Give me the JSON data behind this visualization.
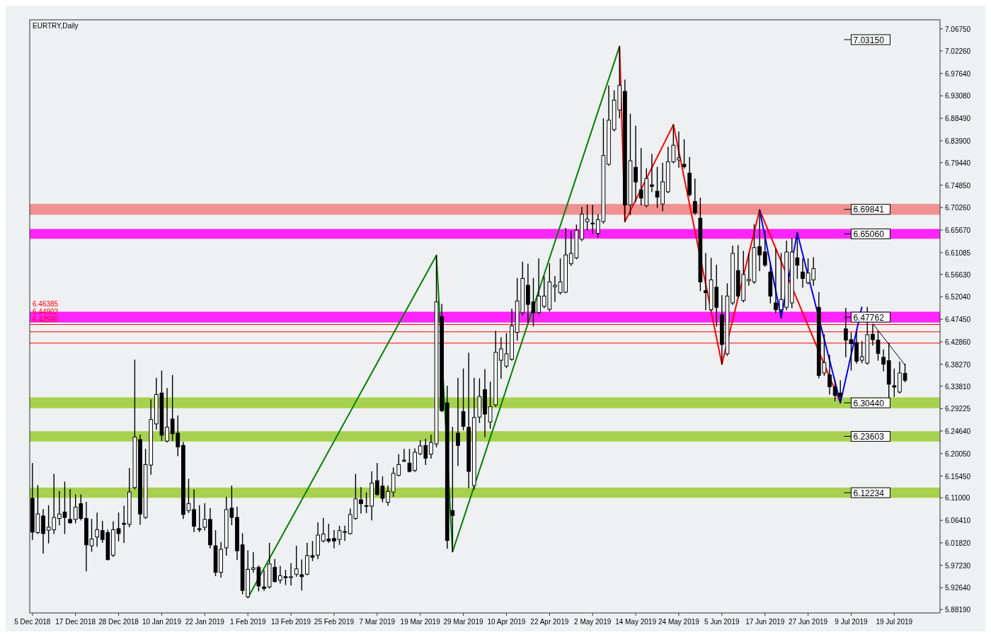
{
  "chart_data": {
    "type": "candlestick",
    "title": "EURTRY,Daily",
    "categories": [
      "5 Dec 2018",
      null,
      null,
      null,
      null,
      null,
      null,
      null,
      "17 Dec 2018",
      null,
      null,
      null,
      null,
      null,
      null,
      null,
      "28 Dec 2018",
      null,
      null,
      null,
      null,
      null,
      null,
      null,
      "10 Jan 2019",
      null,
      null,
      null,
      null,
      null,
      null,
      null,
      "22 Jan 2019",
      null,
      null,
      null,
      null,
      null,
      null,
      null,
      "1 Feb 2019",
      null,
      null,
      null,
      null,
      null,
      null,
      null,
      "13 Feb 2019",
      null,
      null,
      null,
      null,
      null,
      null,
      null,
      "25 Feb 2019",
      null,
      null,
      null,
      null,
      null,
      null,
      null,
      "7 Mar 2019",
      null,
      null,
      null,
      null,
      null,
      null,
      null,
      "19 Mar 2019",
      null,
      null,
      null,
      null,
      null,
      null,
      null,
      "29 Mar 2019",
      null,
      null,
      null,
      null,
      null,
      null,
      null,
      "10 Apr 2019",
      null,
      null,
      null,
      null,
      null,
      null,
      null,
      "22 Apr 2019",
      null,
      null,
      null,
      null,
      null,
      null,
      null,
      "2 May 2019",
      null,
      null,
      null,
      null,
      null,
      null,
      null,
      "14 May 2019",
      null,
      null,
      null,
      null,
      null,
      null,
      null,
      "24 May 2019",
      null,
      null,
      null,
      null,
      null,
      null,
      null,
      "5 Jun 2019",
      null,
      null,
      null,
      null,
      null,
      null,
      null,
      "17 Jun 2019",
      null,
      null,
      null,
      null,
      null,
      null,
      null,
      "27 Jun 2019",
      null,
      null,
      null,
      null,
      null,
      null,
      null,
      "9 Jul 2019",
      null,
      null,
      null,
      null,
      null,
      null,
      null,
      "19 Jul 2019",
      null,
      null
    ],
    "ohlc": [
      [
        6.109,
        6.18,
        6.025,
        6.04
      ],
      [
        6.039,
        6.135,
        6.037,
        6.077
      ],
      [
        6.073,
        6.086,
        5.997,
        6.037
      ],
      [
        6.044,
        6.094,
        6.018,
        6.05
      ],
      [
        6.045,
        6.158,
        6.037,
        6.07
      ],
      [
        6.068,
        6.123,
        6.055,
        6.077
      ],
      [
        6.081,
        6.142,
        6.037,
        6.07
      ],
      [
        6.066,
        6.127,
        6.058,
        6.059
      ],
      [
        6.066,
        6.116,
        6.059,
        6.091
      ],
      [
        6.098,
        6.116,
        6.065,
        6.068
      ],
      [
        6.068,
        6.101,
        5.961,
        6.014
      ],
      [
        6.012,
        6.066,
        6.001,
        6.026
      ],
      [
        6.03,
        6.079,
        6.011,
        6.045
      ],
      [
        6.043,
        6.062,
        6.019,
        6.025
      ],
      [
        6.039,
        6.044,
        5.983,
        5.984
      ],
      [
        5.993,
        6.061,
        5.99,
        6.045
      ],
      [
        6.047,
        6.079,
        6.022,
        6.037
      ],
      [
        6.058,
        6.093,
        6.019,
        6.056
      ],
      [
        6.056,
        6.17,
        6.051,
        6.122
      ],
      [
        6.131,
        6.391,
        6.128,
        6.234
      ],
      [
        6.229,
        6.238,
        6.056,
        6.077
      ],
      [
        6.07,
        6.209,
        6.068,
        6.178
      ],
      [
        6.177,
        6.31,
        6.158,
        6.27
      ],
      [
        6.261,
        6.354,
        6.25,
        6.321
      ],
      [
        6.324,
        6.369,
        6.227,
        6.238
      ],
      [
        6.226,
        6.333,
        6.224,
        6.254
      ],
      [
        6.271,
        6.36,
        6.227,
        6.241
      ],
      [
        6.242,
        6.277,
        6.196,
        6.214
      ],
      [
        6.217,
        6.223,
        6.068,
        6.076
      ],
      [
        6.084,
        6.148,
        6.08,
        6.098
      ],
      [
        6.086,
        6.126,
        6.041,
        6.052
      ],
      [
        6.047,
        6.094,
        6.041,
        6.045
      ],
      [
        6.05,
        6.098,
        6.044,
        6.066
      ],
      [
        6.066,
        6.088,
        6.008,
        6.014
      ],
      [
        6.012,
        6.043,
        5.951,
        5.958
      ],
      [
        5.958,
        6.019,
        5.948,
        6.005
      ],
      [
        6.008,
        6.111,
        5.993,
        6.086
      ],
      [
        6.089,
        6.134,
        6.055,
        6.07
      ],
      [
        6.07,
        6.091,
        5.984,
        6.002
      ],
      [
        6.014,
        6.037,
        5.914,
        5.921
      ],
      [
        5.908,
        6.002,
        5.906,
        5.964
      ],
      [
        5.964,
        5.998,
        5.958,
        5.967
      ],
      [
        5.968,
        5.971,
        5.92,
        5.93
      ],
      [
        5.928,
        5.961,
        5.921,
        5.925
      ],
      [
        5.928,
        6.017,
        5.926,
        5.975
      ],
      [
        5.968,
        5.984,
        5.938,
        5.939
      ],
      [
        5.942,
        5.97,
        5.936,
        5.951
      ],
      [
        5.949,
        5.962,
        5.933,
        5.947
      ],
      [
        5.947,
        5.976,
        5.932,
        5.949
      ],
      [
        5.954,
        6.011,
        5.95,
        5.965
      ],
      [
        5.953,
        5.983,
        5.922,
        5.949
      ],
      [
        5.954,
        6.017,
        5.953,
        5.992
      ],
      [
        5.992,
        6.021,
        5.982,
        5.989
      ],
      [
        5.993,
        6.059,
        5.986,
        6.034
      ],
      [
        6.022,
        6.068,
        6.02,
        6.036
      ],
      [
        6.026,
        6.056,
        6.019,
        6.022
      ],
      [
        6.027,
        6.043,
        6.008,
        6.022
      ],
      [
        6.025,
        6.052,
        6.015,
        6.043
      ],
      [
        6.04,
        6.052,
        6.023,
        6.041
      ],
      [
        6.037,
        6.087,
        6.036,
        6.076
      ],
      [
        6.068,
        6.158,
        6.066,
        6.108
      ],
      [
        6.106,
        6.131,
        6.079,
        6.098
      ],
      [
        6.094,
        6.12,
        6.08,
        6.093
      ],
      [
        6.093,
        6.163,
        6.065,
        6.14
      ],
      [
        6.145,
        6.18,
        6.115,
        6.117
      ],
      [
        6.134,
        6.153,
        6.102,
        6.109
      ],
      [
        6.101,
        6.134,
        6.095,
        6.123
      ],
      [
        6.122,
        6.171,
        6.113,
        6.16
      ],
      [
        6.156,
        6.198,
        6.155,
        6.178
      ],
      [
        6.185,
        6.209,
        6.184,
        6.187
      ],
      [
        6.181,
        6.209,
        6.163,
        6.164
      ],
      [
        6.166,
        6.21,
        6.164,
        6.203
      ],
      [
        6.2,
        6.227,
        6.198,
        6.216
      ],
      [
        6.217,
        6.23,
        6.178,
        6.191
      ],
      [
        6.199,
        6.238,
        6.191,
        6.223
      ],
      [
        6.22,
        6.605,
        6.214,
        6.51
      ],
      [
        6.48,
        6.505,
        6.286,
        6.288
      ],
      [
        6.304,
        6.338,
        6.007,
        6.023
      ],
      [
        6.084,
        6.254,
        6.0,
        6.074
      ],
      [
        6.242,
        6.354,
        6.176,
        6.217
      ],
      [
        6.286,
        6.373,
        6.249,
        6.256
      ],
      [
        6.254,
        6.405,
        6.131,
        6.164
      ],
      [
        6.135,
        6.354,
        6.128,
        6.274
      ],
      [
        6.275,
        6.353,
        6.264,
        6.317
      ],
      [
        6.331,
        6.372,
        6.235,
        6.281
      ],
      [
        6.265,
        6.346,
        6.252,
        6.296
      ],
      [
        6.3,
        6.45,
        6.297,
        6.407
      ],
      [
        6.391,
        6.437,
        6.354,
        6.414
      ],
      [
        6.379,
        6.445,
        6.376,
        6.404
      ],
      [
        6.393,
        6.495,
        6.391,
        6.461
      ],
      [
        6.448,
        6.558,
        6.432,
        6.512
      ],
      [
        6.488,
        6.591,
        6.483,
        6.558
      ],
      [
        6.544,
        6.587,
        6.468,
        6.505
      ],
      [
        6.51,
        6.558,
        6.461,
        6.488
      ],
      [
        6.488,
        6.598,
        6.486,
        6.522
      ],
      [
        6.501,
        6.562,
        6.498,
        6.522
      ],
      [
        6.495,
        6.588,
        6.492,
        6.551
      ],
      [
        6.541,
        6.562,
        6.511,
        6.544
      ],
      [
        6.529,
        6.598,
        6.526,
        6.551
      ],
      [
        6.53,
        6.66,
        6.529,
        6.606
      ],
      [
        6.588,
        6.654,
        6.585,
        6.609
      ],
      [
        6.6,
        6.667,
        6.598,
        6.656
      ],
      [
        6.638,
        6.703,
        6.635,
        6.689
      ],
      [
        6.674,
        6.708,
        6.657,
        6.679
      ],
      [
        6.671,
        6.707,
        6.65,
        6.67
      ],
      [
        6.65,
        6.688,
        6.642,
        6.678
      ],
      [
        6.674,
        6.884,
        6.671,
        6.809
      ],
      [
        6.791,
        6.951,
        6.789,
        6.881
      ],
      [
        6.862,
        6.941,
        6.859,
        6.922
      ],
      [
        6.902,
        7.032,
        6.886,
        6.952
      ],
      [
        6.94,
        6.963,
        6.674,
        6.708
      ],
      [
        6.708,
        6.893,
        6.688,
        6.798
      ],
      [
        6.785,
        6.869,
        6.715,
        6.755
      ],
      [
        6.739,
        6.823,
        6.708,
        6.722
      ],
      [
        6.707,
        6.782,
        6.704,
        6.762
      ],
      [
        6.749,
        6.811,
        6.735,
        6.746
      ],
      [
        6.736,
        6.785,
        6.703,
        6.724
      ],
      [
        6.71,
        6.793,
        6.696,
        6.755
      ],
      [
        6.735,
        6.826,
        6.733,
        6.796
      ],
      [
        6.796,
        6.872,
        6.794,
        6.83
      ],
      [
        6.8,
        6.857,
        6.785,
        6.804
      ],
      [
        6.791,
        6.841,
        6.783,
        6.786
      ],
      [
        6.773,
        6.805,
        6.726,
        6.729
      ],
      [
        6.715,
        6.761,
        6.689,
        6.692
      ],
      [
        6.681,
        6.722,
        6.533,
        6.551
      ],
      [
        6.533,
        6.609,
        6.494,
        6.529
      ],
      [
        6.494,
        6.599,
        6.493,
        6.555
      ],
      [
        6.54,
        6.585,
        6.461,
        6.499
      ],
      [
        6.484,
        6.523,
        6.383,
        6.423
      ],
      [
        6.404,
        6.547,
        6.401,
        6.522
      ],
      [
        6.508,
        6.624,
        6.505,
        6.609
      ],
      [
        6.574,
        6.625,
        6.519,
        6.522
      ],
      [
        6.513,
        6.613,
        6.51,
        6.566
      ],
      [
        6.553,
        6.609,
        6.544,
        6.556
      ],
      [
        6.551,
        6.668,
        6.548,
        6.621
      ],
      [
        6.623,
        6.698,
        6.574,
        6.606
      ],
      [
        6.612,
        6.654,
        6.583,
        6.585
      ],
      [
        6.571,
        6.588,
        6.508,
        6.522
      ],
      [
        6.508,
        6.618,
        6.488,
        6.494
      ],
      [
        6.494,
        6.609,
        6.478,
        6.515
      ],
      [
        6.499,
        6.634,
        6.494,
        6.612
      ],
      [
        6.508,
        6.639,
        6.498,
        6.612
      ],
      [
        6.6,
        6.651,
        6.558,
        6.585
      ],
      [
        6.571,
        6.598,
        6.54,
        6.558
      ],
      [
        6.549,
        6.598,
        6.547,
        6.569
      ],
      [
        6.555,
        6.6,
        6.544,
        6.578
      ],
      [
        6.499,
        6.529,
        6.355,
        6.36
      ],
      [
        6.365,
        6.443,
        6.36,
        6.386
      ],
      [
        6.361,
        6.401,
        6.322,
        6.337
      ],
      [
        6.336,
        6.349,
        6.308,
        6.319
      ],
      [
        6.324,
        6.349,
        6.304,
        6.317
      ],
      [
        6.455,
        6.497,
        6.398,
        6.432
      ],
      [
        6.433,
        6.447,
        6.371,
        6.425
      ],
      [
        6.427,
        6.45,
        6.385,
        6.389
      ],
      [
        6.391,
        6.429,
        6.386,
        6.398
      ],
      [
        6.385,
        6.499,
        6.383,
        6.443
      ],
      [
        6.444,
        6.463,
        6.422,
        6.433
      ],
      [
        6.432,
        6.45,
        6.391,
        6.405
      ],
      [
        6.397,
        6.412,
        6.369,
        6.383
      ],
      [
        6.39,
        6.426,
        6.308,
        6.342
      ],
      [
        6.339,
        6.373,
        6.317,
        6.336
      ],
      [
        6.326,
        6.387,
        6.324,
        6.365
      ],
      [
        6.364,
        6.383,
        6.347,
        6.35
      ]
    ],
    "series": [
      {
        "type": "line",
        "color": "#008000",
        "values": [
          null,
          null,
          null,
          null,
          null,
          null,
          null,
          null,
          null,
          null,
          null,
          null,
          null,
          null,
          null,
          null,
          null,
          null,
          null,
          null,
          null,
          null,
          null,
          null,
          null,
          null,
          null,
          null,
          null,
          null,
          null,
          null,
          null,
          null,
          null,
          null,
          null,
          null,
          null,
          null,
          5.906,
          null,
          null,
          null,
          null,
          null,
          null,
          null,
          null,
          null,
          null,
          null,
          null,
          null,
          null,
          null,
          null,
          null,
          null,
          null,
          null,
          null,
          null,
          null,
          null,
          null,
          null,
          null,
          null,
          null,
          null,
          null,
          null,
          null,
          null,
          6.605,
          null,
          null,
          6.0,
          null,
          null,
          null,
          null,
          null,
          null,
          null,
          null,
          null,
          null,
          null,
          null,
          null,
          null,
          null,
          null,
          null,
          null,
          null,
          null,
          null,
          null,
          null,
          null,
          null,
          null,
          null,
          null,
          null,
          null,
          7.032,
          null,
          null,
          null,
          null,
          null,
          null,
          null,
          null,
          null,
          null,
          null,
          null,
          null,
          null,
          null,
          null,
          null,
          null,
          null,
          null,
          null,
          null,
          null,
          null,
          null,
          null,
          null,
          null,
          null,
          null,
          null,
          null,
          null,
          null,
          null,
          null,
          null,
          null,
          null,
          null,
          null,
          null,
          null,
          null,
          null,
          null,
          null,
          null,
          null,
          null,
          null,
          null,
          null
        ]
      },
      {
        "type": "line",
        "color": "#ff0000",
        "values": [
          null,
          null,
          null,
          null,
          null,
          null,
          null,
          null,
          null,
          null,
          null,
          null,
          null,
          null,
          null,
          null,
          null,
          null,
          null,
          null,
          null,
          null,
          null,
          null,
          null,
          null,
          null,
          null,
          null,
          null,
          null,
          null,
          null,
          null,
          null,
          null,
          null,
          null,
          null,
          null,
          null,
          null,
          null,
          null,
          null,
          null,
          null,
          null,
          null,
          null,
          null,
          null,
          null,
          null,
          null,
          null,
          null,
          null,
          null,
          null,
          null,
          null,
          null,
          null,
          null,
          null,
          null,
          null,
          null,
          null,
          null,
          null,
          null,
          null,
          null,
          null,
          null,
          null,
          null,
          null,
          null,
          null,
          null,
          null,
          null,
          null,
          null,
          null,
          null,
          null,
          null,
          null,
          null,
          null,
          null,
          null,
          null,
          null,
          null,
          null,
          null,
          null,
          null,
          null,
          null,
          null,
          null,
          null,
          null,
          7.032,
          6.674,
          null,
          null,
          null,
          null,
          null,
          null,
          null,
          null,
          6.872,
          null,
          null,
          null,
          null,
          null,
          null,
          null,
          null,
          6.383,
          null,
          null,
          null,
          null,
          null,
          null,
          6.698,
          null,
          null,
          null,
          null,
          null,
          null,
          null,
          null,
          null,
          null,
          null,
          null,
          null,
          null,
          6.304,
          null,
          null,
          null,
          null,
          null,
          null,
          null,
          null,
          null,
          null,
          null,
          null
        ]
      },
      {
        "type": "line",
        "color": "#0000ff",
        "values": [
          null,
          null,
          null,
          null,
          null,
          null,
          null,
          null,
          null,
          null,
          null,
          null,
          null,
          null,
          null,
          null,
          null,
          null,
          null,
          null,
          null,
          null,
          null,
          null,
          null,
          null,
          null,
          null,
          null,
          null,
          null,
          null,
          null,
          null,
          null,
          null,
          null,
          null,
          null,
          null,
          null,
          null,
          null,
          null,
          null,
          null,
          null,
          null,
          null,
          null,
          null,
          null,
          null,
          null,
          null,
          null,
          null,
          null,
          null,
          null,
          null,
          null,
          null,
          null,
          null,
          null,
          null,
          null,
          null,
          null,
          null,
          null,
          null,
          null,
          null,
          null,
          null,
          null,
          null,
          null,
          null,
          null,
          null,
          null,
          null,
          null,
          null,
          null,
          null,
          null,
          null,
          null,
          null,
          null,
          null,
          null,
          null,
          null,
          null,
          null,
          null,
          null,
          null,
          null,
          null,
          null,
          null,
          null,
          null,
          null,
          null,
          null,
          null,
          null,
          null,
          null,
          null,
          null,
          null,
          null,
          null,
          null,
          null,
          null,
          null,
          null,
          null,
          null,
          null,
          null,
          null,
          null,
          null,
          null,
          null,
          6.698,
          null,
          null,
          null,
          6.478,
          null,
          null,
          6.651,
          null,
          null,
          null,
          null,
          null,
          null,
          null,
          6.304,
          null,
          null,
          null,
          6.5,
          null,
          null,
          null,
          null,
          null,
          null,
          null,
          null
        ]
      },
      {
        "type": "line",
        "color": "#000000",
        "values": [
          null,
          null,
          null,
          null,
          null,
          null,
          null,
          null,
          null,
          null,
          null,
          null,
          null,
          null,
          null,
          null,
          null,
          null,
          null,
          null,
          null,
          null,
          null,
          null,
          null,
          null,
          null,
          null,
          null,
          null,
          null,
          null,
          null,
          null,
          null,
          null,
          null,
          null,
          null,
          null,
          null,
          null,
          null,
          null,
          null,
          null,
          null,
          null,
          null,
          null,
          null,
          null,
          null,
          null,
          null,
          null,
          null,
          null,
          null,
          null,
          null,
          null,
          null,
          null,
          null,
          null,
          null,
          null,
          null,
          null,
          null,
          null,
          null,
          null,
          null,
          null,
          null,
          null,
          null,
          null,
          null,
          null,
          null,
          null,
          null,
          null,
          null,
          null,
          null,
          null,
          null,
          null,
          null,
          null,
          null,
          null,
          null,
          null,
          null,
          null,
          null,
          null,
          null,
          null,
          null,
          null,
          null,
          null,
          null,
          null,
          null,
          null,
          null,
          null,
          null,
          null,
          null,
          null,
          null,
          null,
          null,
          null,
          null,
          null,
          null,
          null,
          null,
          null,
          null,
          null,
          null,
          null,
          null,
          null,
          null,
          null,
          null,
          null,
          null,
          null,
          null,
          null,
          null,
          null,
          null,
          null,
          null,
          null,
          null,
          null,
          null,
          null,
          null,
          null,
          null,
          null,
          6.466,
          null,
          null,
          null,
          null,
          null,
          6.381
        ]
      }
    ],
    "bands": [
      {
        "axis": "y",
        "from": 6.293,
        "to": 6.315,
        "color": "#9acd32",
        "label": "6.30440"
      },
      {
        "axis": "y",
        "from": 6.225,
        "to": 6.246,
        "color": "#9acd32",
        "label": "6.23603"
      },
      {
        "axis": "y",
        "from": 6.11,
        "to": 6.131,
        "color": "#9acd32",
        "label": "6.12234"
      },
      {
        "axis": "y",
        "from": 6.468,
        "to": 6.49,
        "color": "#ff00ff",
        "label": "6.47762"
      },
      {
        "axis": "y",
        "from": 6.639,
        "to": 6.659,
        "color": "#ff00ff",
        "label": "6.65060"
      },
      {
        "axis": "y",
        "from": 6.688,
        "to": 6.71,
        "color": "#f08080",
        "label": "6.69841"
      }
    ],
    "ref_lines": [
      {
        "axis": "y",
        "value": 6.46385,
        "label": "6.46385",
        "color": "#ff0000"
      },
      {
        "axis": "y",
        "value": 6.44902,
        "label": "6.44902",
        "color": "#ff0000"
      },
      {
        "axis": "y",
        "value": 6.4259,
        "label": "6.42590",
        "color": "#ff0000"
      }
    ],
    "annotations": [
      "7.03150"
    ],
    "ylim": [
      5.875,
      7.086
    ],
    "yticks": [
      {
        "value": 7.0675,
        "label": "7.06750"
      },
      {
        "value": 7.0226,
        "label": "7.02260"
      },
      {
        "value": 6.9764,
        "label": "6.97640"
      },
      {
        "value": 6.9308,
        "label": "6.93080"
      },
      {
        "value": 6.8849,
        "label": "6.88490"
      },
      {
        "value": 6.839,
        "label": "6.83900"
      },
      {
        "value": 6.7944,
        "label": "6.79440"
      },
      {
        "value": 6.7485,
        "label": "6.74850"
      },
      {
        "value": 6.7026,
        "label": "6.70260"
      },
      {
        "value": 6.6567,
        "label": "6.65670"
      },
      {
        "value": 6.61085,
        "label": "6.61085"
      },
      {
        "value": 6.5663,
        "label": "6.56630"
      },
      {
        "value": 6.5204,
        "label": "6.52040"
      },
      {
        "value": 6.4745,
        "label": "6.47450"
      },
      {
        "value": 6.4286,
        "label": "6.42860"
      },
      {
        "value": 6.3827,
        "label": "6.38270"
      },
      {
        "value": 6.3381,
        "label": "6.33810"
      },
      {
        "value": 6.29225,
        "label": "6.29225"
      },
      {
        "value": 6.2464,
        "label": "6.24640"
      },
      {
        "value": 6.2005,
        "label": "6.20050"
      },
      {
        "value": 6.1545,
        "label": "6.15450"
      },
      {
        "value": 6.11,
        "label": "6.11000"
      },
      {
        "value": 6.0641,
        "label": "6.06410"
      },
      {
        "value": 6.0182,
        "label": "6.01820"
      },
      {
        "value": 5.9723,
        "label": "5.97230"
      },
      {
        "value": 5.9264,
        "label": "5.92640"
      },
      {
        "value": 5.8819,
        "label": "5.88190"
      }
    ]
  }
}
